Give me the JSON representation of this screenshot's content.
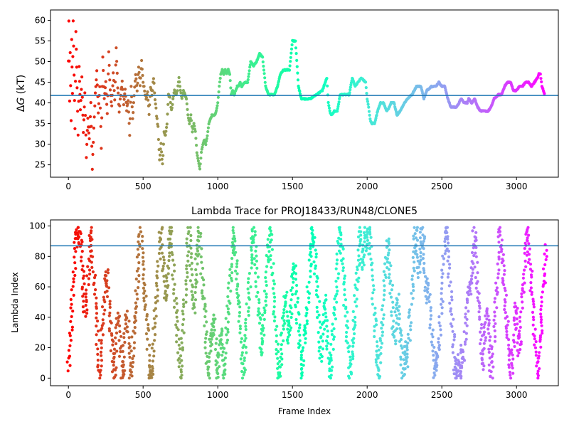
{
  "chart_data": [
    {
      "type": "scatter",
      "title": "",
      "xlabel": "",
      "ylabel": "ΔG (kT)",
      "ylabel_math": true,
      "xlim": [
        -120,
        3280
      ],
      "ylim": [
        22,
        62.5
      ],
      "xticks": [
        0,
        500,
        1000,
        1500,
        2000,
        2500,
        3000
      ],
      "yticks": [
        25,
        30,
        35,
        40,
        45,
        50,
        55,
        60
      ],
      "hline": 41.8,
      "hline_color": "#1f77b4",
      "colormap": "rainbow",
      "color_order": "reversed (red at frame 0, violet at last frame)",
      "grid": false,
      "trace_keypoints": [
        [
          0,
          50
        ],
        [
          3,
          60
        ],
        [
          8,
          40
        ],
        [
          12,
          52
        ],
        [
          18,
          36
        ],
        [
          22,
          55
        ],
        [
          27,
          42
        ],
        [
          32,
          60
        ],
        [
          38,
          47
        ],
        [
          44,
          34
        ],
        [
          50,
          57
        ],
        [
          58,
          44
        ],
        [
          65,
          32
        ],
        [
          72,
          49
        ],
        [
          80,
          38
        ],
        [
          90,
          46
        ],
        [
          100,
          33
        ],
        [
          110,
          42
        ],
        [
          120,
          27
        ],
        [
          130,
          36
        ],
        [
          140,
          31
        ],
        [
          150,
          40
        ],
        [
          160,
          24
        ],
        [
          170,
          34
        ],
        [
          180,
          42
        ],
        [
          190,
          48
        ],
        [
          200,
          38
        ],
        [
          210,
          44
        ],
        [
          220,
          29
        ],
        [
          230,
          51
        ],
        [
          240,
          41
        ],
        [
          250,
          45
        ],
        [
          260,
          37
        ],
        [
          270,
          52
        ],
        [
          280,
          43
        ],
        [
          290,
          39
        ],
        [
          300,
          47
        ],
        [
          310,
          41
        ],
        [
          320,
          53
        ],
        [
          330,
          44
        ],
        [
          340,
          38
        ],
        [
          350,
          42
        ],
        [
          360,
          45
        ],
        [
          370,
          40
        ],
        [
          380,
          43
        ],
        [
          390,
          38
        ],
        [
          400,
          41
        ],
        [
          410,
          32
        ],
        [
          420,
          44
        ],
        [
          430,
          36
        ],
        [
          440,
          42
        ],
        [
          450,
          47
        ],
        [
          460,
          43
        ],
        [
          470,
          49
        ],
        [
          480,
          44
        ],
        [
          490,
          50
        ],
        [
          500,
          45
        ],
        [
          510,
          43
        ],
        [
          520,
          41
        ],
        [
          530,
          43
        ],
        [
          540,
          37
        ],
        [
          550,
          44
        ],
        [
          560,
          42
        ],
        [
          570,
          46
        ],
        [
          580,
          41
        ],
        [
          590,
          37
        ],
        [
          600,
          34
        ],
        [
          610,
          26
        ],
        [
          620,
          30
        ],
        [
          630,
          25
        ],
        [
          640,
          33
        ],
        [
          650,
          32
        ],
        [
          660,
          35
        ],
        [
          670,
          42
        ],
        [
          680,
          41
        ],
        [
          690,
          38
        ],
        [
          700,
          41
        ],
        [
          710,
          43
        ],
        [
          720,
          42
        ],
        [
          730,
          43
        ],
        [
          740,
          46
        ],
        [
          750,
          43
        ],
        [
          760,
          41
        ],
        [
          770,
          43
        ],
        [
          780,
          42
        ],
        [
          790,
          41
        ],
        [
          800,
          37
        ],
        [
          810,
          35
        ],
        [
          820,
          37
        ],
        [
          830,
          33
        ],
        [
          840,
          35
        ],
        [
          850,
          33
        ],
        [
          860,
          28
        ],
        [
          870,
          26
        ],
        [
          880,
          24
        ],
        [
          890,
          28
        ],
        [
          900,
          30
        ],
        [
          910,
          31
        ],
        [
          920,
          30
        ],
        [
          930,
          32
        ],
        [
          940,
          35
        ],
        [
          950,
          36
        ],
        [
          960,
          37
        ],
        [
          970,
          37
        ],
        [
          980,
          37
        ],
        [
          990,
          38
        ],
        [
          1000,
          40
        ],
        [
          1010,
          44
        ],
        [
          1020,
          47
        ],
        [
          1030,
          48
        ],
        [
          1040,
          47
        ],
        [
          1050,
          48
        ],
        [
          1060,
          47
        ],
        [
          1070,
          48
        ],
        [
          1080,
          47
        ],
        [
          1090,
          42
        ],
        [
          1100,
          43
        ],
        [
          1110,
          42
        ],
        [
          1120,
          43
        ],
        [
          1130,
          44
        ],
        [
          1140,
          44
        ],
        [
          1150,
          45
        ],
        [
          1160,
          44
        ],
        [
          1180,
          45
        ],
        [
          1200,
          45
        ],
        [
          1220,
          50
        ],
        [
          1240,
          49
        ],
        [
          1260,
          50
        ],
        [
          1280,
          52
        ],
        [
          1300,
          51
        ],
        [
          1320,
          44
        ],
        [
          1340,
          42
        ],
        [
          1380,
          42
        ],
        [
          1400,
          44
        ],
        [
          1420,
          47
        ],
        [
          1440,
          48
        ],
        [
          1460,
          48
        ],
        [
          1480,
          48
        ],
        [
          1500,
          55
        ],
        [
          1520,
          55
        ],
        [
          1540,
          44
        ],
        [
          1560,
          41
        ],
        [
          1580,
          41
        ],
        [
          1620,
          41
        ],
        [
          1660,
          42
        ],
        [
          1700,
          43
        ],
        [
          1710,
          44
        ],
        [
          1730,
          46
        ],
        [
          1740,
          40
        ],
        [
          1750,
          38
        ],
        [
          1760,
          37
        ],
        [
          1780,
          38
        ],
        [
          1800,
          38
        ],
        [
          1820,
          42
        ],
        [
          1850,
          42
        ],
        [
          1880,
          42
        ],
        [
          1900,
          46
        ],
        [
          1920,
          44
        ],
        [
          1960,
          46
        ],
        [
          1990,
          45
        ],
        [
          2000,
          41
        ],
        [
          2010,
          39
        ],
        [
          2020,
          36
        ],
        [
          2030,
          35
        ],
        [
          2050,
          35
        ],
        [
          2070,
          38
        ],
        [
          2090,
          40
        ],
        [
          2110,
          40
        ],
        [
          2130,
          38
        ],
        [
          2150,
          39
        ],
        [
          2160,
          40
        ],
        [
          2180,
          40
        ],
        [
          2200,
          37
        ],
        [
          2220,
          38
        ],
        [
          2250,
          40
        ],
        [
          2270,
          41
        ],
        [
          2300,
          42
        ],
        [
          2330,
          44
        ],
        [
          2360,
          44
        ],
        [
          2380,
          41
        ],
        [
          2400,
          43
        ],
        [
          2430,
          44
        ],
        [
          2460,
          44
        ],
        [
          2480,
          45
        ],
        [
          2500,
          44
        ],
        [
          2520,
          44
        ],
        [
          2540,
          41
        ],
        [
          2560,
          39
        ],
        [
          2600,
          39
        ],
        [
          2630,
          41
        ],
        [
          2650,
          40
        ],
        [
          2670,
          40
        ],
        [
          2680,
          41
        ],
        [
          2700,
          40
        ],
        [
          2720,
          41
        ],
        [
          2740,
          39
        ],
        [
          2760,
          38
        ],
        [
          2790,
          38
        ],
        [
          2810,
          38
        ],
        [
          2830,
          39
        ],
        [
          2850,
          41
        ],
        [
          2880,
          42
        ],
        [
          2900,
          42
        ],
        [
          2920,
          44
        ],
        [
          2940,
          45
        ],
        [
          2960,
          45
        ],
        [
          2980,
          43
        ],
        [
          3000,
          43
        ],
        [
          3020,
          44
        ],
        [
          3040,
          44
        ],
        [
          3060,
          45
        ],
        [
          3080,
          45
        ],
        [
          3100,
          44
        ],
        [
          3120,
          45
        ],
        [
          3140,
          46
        ],
        [
          3150,
          47
        ],
        [
          3160,
          47
        ],
        [
          3170,
          44
        ],
        [
          3180,
          43
        ],
        [
          3190,
          42
        ]
      ]
    },
    {
      "type": "scatter",
      "title": "Lambda Trace for PROJ18433/RUN48/CLONE5",
      "xlabel": "Frame Index",
      "ylabel": "Lambda Index",
      "xlim": [
        -120,
        3280
      ],
      "ylim": [
        -5,
        104
      ],
      "xticks": [
        0,
        500,
        1000,
        1500,
        2000,
        2500,
        3000
      ],
      "yticks": [
        0,
        20,
        40,
        60,
        80,
        100
      ],
      "hline": 87,
      "hline_color": "#1f77b4",
      "colormap": "rainbow",
      "color_order": "reversed (red at frame 0, violet at last frame)",
      "grid": false,
      "frames": 3200,
      "lambda_range": [
        0,
        99
      ],
      "pattern": "sweeping bands: frames repeatedly sweep lambda between 0 and 99"
    }
  ]
}
